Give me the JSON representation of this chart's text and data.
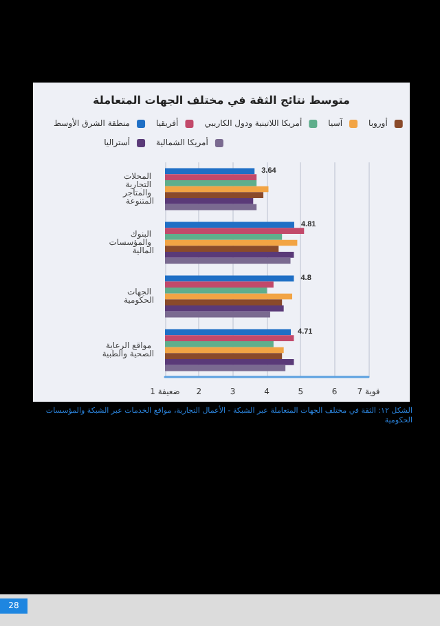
{
  "chart_data": {
    "type": "bar",
    "orientation": "horizontal",
    "title": "متوسط نتائج الثقة في مختلف الجهات المتعاملة",
    "categories": [
      "المحلات التجارية والمتاجر المتنوعة",
      "البنوك والمؤسسات المالية",
      "الجهات الحكومية",
      "مواقع الرعاية الصحية والطبية"
    ],
    "series": [
      {
        "name": "منطقة الشرق الأوسط",
        "color": "#1f6fc5",
        "values": [
          3.64,
          4.81,
          4.8,
          4.71
        ],
        "value_labels": [
          "3.64",
          "4.81",
          "4.8",
          "4.71"
        ]
      },
      {
        "name": "أفريقيا",
        "color": "#c2496a",
        "values": [
          3.7,
          5.1,
          4.2,
          4.8
        ]
      },
      {
        "name": "أمريكا اللاتينية ودول الكاريبي",
        "color": "#5fae8c",
        "values": [
          3.7,
          4.45,
          4.0,
          4.2
        ]
      },
      {
        "name": "آسيا",
        "color": "#f2a444",
        "values": [
          4.05,
          4.9,
          4.75,
          4.5
        ]
      },
      {
        "name": "أوروبا",
        "color": "#8a4a2a",
        "values": [
          3.9,
          4.35,
          4.45,
          4.45
        ]
      },
      {
        "name": "أستراليا",
        "color": "#5a3a78",
        "values": [
          3.6,
          4.8,
          4.5,
          4.8
        ]
      },
      {
        "name": "أمريكا الشمالية",
        "color": "#7a6a90",
        "values": [
          3.7,
          4.7,
          4.1,
          4.55
        ]
      }
    ],
    "xlim": [
      1,
      7
    ],
    "xticks": [
      {
        "value": 1,
        "label": "ضعيفة 1"
      },
      2,
      3,
      4,
      5,
      6,
      {
        "value": 7,
        "label": "قوية 7"
      }
    ],
    "grid": "x",
    "legend": "top",
    "annotations": [
      "الشكل ١٢: الثقة في مختلف الجهات المتعاملة عبر الشبكة - الأعمال التجارية، مواقع الخدمات عبر الشبكة والمؤسسات الحكومية",
      "28"
    ]
  }
}
